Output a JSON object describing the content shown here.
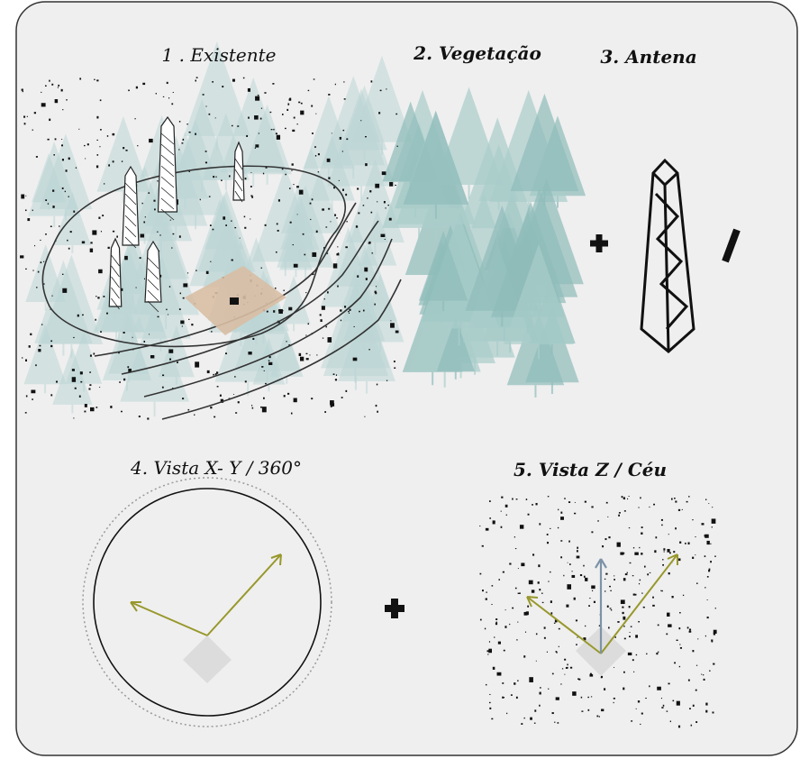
{
  "steps": [
    {
      "label": "1 . Existente"
    },
    {
      "label": "2. Vegetação"
    },
    {
      "label": "3. Antena"
    },
    {
      "label": "4. Vista X- Y / 360°"
    },
    {
      "label": "5. Vista Z / Céu"
    }
  ]
}
